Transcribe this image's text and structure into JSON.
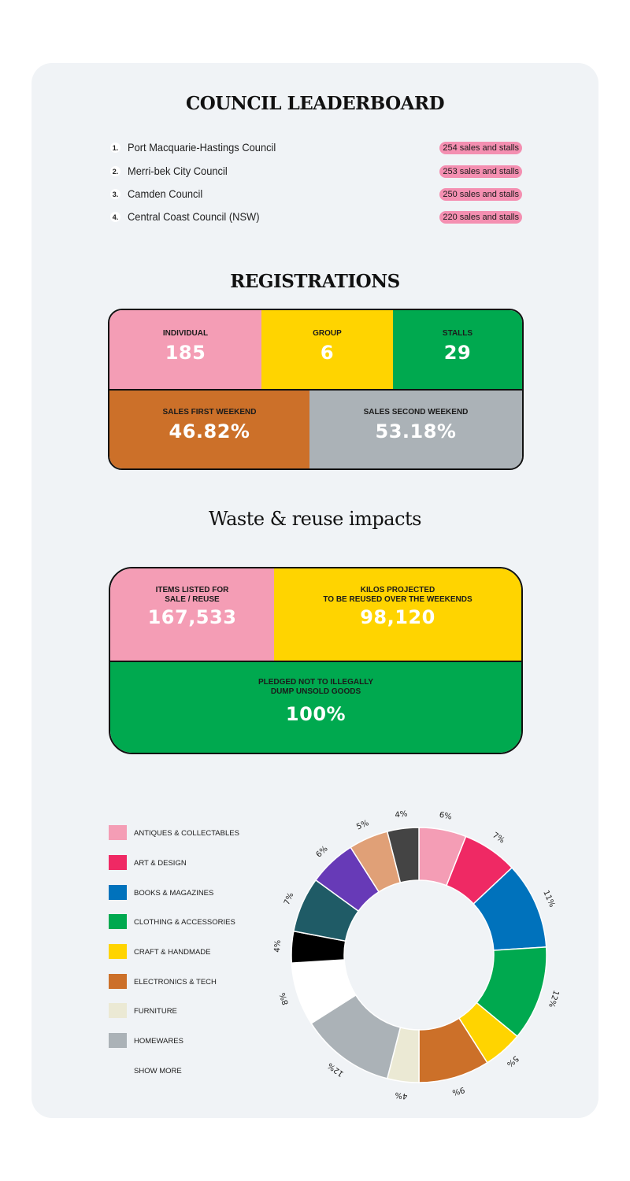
{
  "leaderboard": {
    "title": "COUNCIL LEADERBOARD",
    "items": [
      {
        "rank": "1.",
        "name": "Port Macquarie-Hastings Council",
        "badge": "254 sales and stalls"
      },
      {
        "rank": "2.",
        "name": "Merri-bek City Council",
        "badge": "253 sales and stalls"
      },
      {
        "rank": "3.",
        "name": "Camden Council",
        "badge": "250 sales and stalls"
      },
      {
        "rank": "4.",
        "name": "Central Coast Council (NSW)",
        "badge": "220 sales and stalls"
      }
    ]
  },
  "registrations": {
    "title": "REGISTRATIONS",
    "individual": {
      "label": "INDIVIDUAL",
      "value": "185"
    },
    "group": {
      "label": "GROUP",
      "value": "6"
    },
    "stalls": {
      "label": "STALLS",
      "value": "29"
    },
    "first_weekend": {
      "label": "SALES FIRST WEEKEND",
      "value": "46.82%"
    },
    "second_weekend": {
      "label": "SALES SECOND WEEKEND",
      "value": "53.18%"
    }
  },
  "impacts": {
    "title": "Waste & reuse impacts",
    "items_listed": {
      "label_line1": "ITEMS LISTED FOR",
      "label_line2": "SALE / REUSE",
      "value": "167,533"
    },
    "kilos": {
      "label_line1": "KILOS PROJECTED",
      "label_line2": "TO BE REUSED OVER THE WEEKENDS",
      "value": "98,120"
    },
    "pledged": {
      "label_line1": "PLEDGED NOT TO ILLEGALLY",
      "label_line2": "DUMP UNSOLD GOODS",
      "value": "100%"
    }
  },
  "colors": {
    "pink": "#f49db5",
    "magenta": "#ef2964",
    "blue": "#0072bc",
    "green": "#00a94f",
    "yellow": "#ffd400",
    "orange": "#cc7029",
    "grey": "#abb2b7",
    "cream": "#ebe9d4"
  },
  "legend": {
    "items": [
      {
        "label": "ANTIQUES & COLLECTABLES",
        "color": "#f49db5"
      },
      {
        "label": "ART & DESIGN",
        "color": "#ef2964"
      },
      {
        "label": "BOOKS & MAGAZINES",
        "color": "#0072bc"
      },
      {
        "label": "CLOTHING & ACCESSORIES",
        "color": "#00a94f"
      },
      {
        "label": "CRAFT & HANDMADE",
        "color": "#ffd400"
      },
      {
        "label": "ELECTRONICS & TECH",
        "color": "#cc7029"
      },
      {
        "label": "FURNITURE",
        "color": "#ebe9d4"
      },
      {
        "label": "HOMEWARES",
        "color": "#abb2b7"
      }
    ],
    "show_more": "SHOW MORE"
  },
  "chart_data": {
    "type": "pie",
    "donut": true,
    "title": "",
    "slices": [
      {
        "value": 6,
        "label": "6%",
        "color": "#f49db5"
      },
      {
        "value": 7,
        "label": "7%",
        "color": "#ef2964"
      },
      {
        "value": 11,
        "label": "11%",
        "color": "#0072bc"
      },
      {
        "value": 12,
        "label": "12%",
        "color": "#00a94f"
      },
      {
        "value": 5,
        "label": "5%",
        "color": "#ffd400"
      },
      {
        "value": 9,
        "label": "9%",
        "color": "#cc7029"
      },
      {
        "value": 4,
        "label": "4%",
        "color": "#ebe9d4"
      },
      {
        "value": 12,
        "label": "12%",
        "color": "#abb2b7"
      },
      {
        "value": 8,
        "label": "8%",
        "color": "#ffffff"
      },
      {
        "value": 4,
        "label": "4%",
        "color": "#000000"
      },
      {
        "value": 7,
        "label": "7%",
        "color": "#1f5b66"
      },
      {
        "value": 6,
        "label": "6%",
        "color": "#673ab7"
      },
      {
        "value": 5,
        "label": "5%",
        "color": "#e0a077"
      },
      {
        "value": 4,
        "label": "4%",
        "color": "#444444"
      }
    ],
    "legend_position": "left"
  }
}
